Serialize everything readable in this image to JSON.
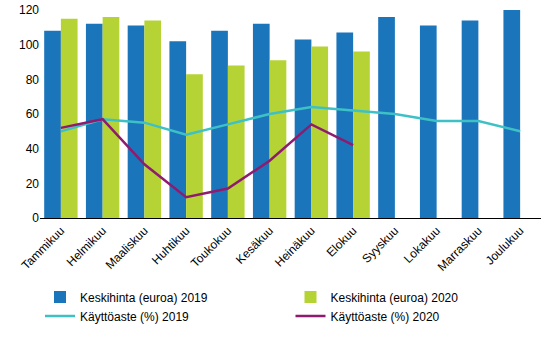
{
  "chart_data": {
    "type": "bar",
    "categories": [
      "Tammikuu",
      "Helmikuu",
      "Maaliskuu",
      "Huhtikuu",
      "Toukokuu",
      "Kesäkuu",
      "Heinäkuu",
      "Elokuu",
      "Syyskuu",
      "Lokakuu",
      "Marraskuu",
      "Joulukuu"
    ],
    "series": [
      {
        "name": "Keskihinta (euroa) 2019",
        "type": "bar",
        "color": "#1b75bb",
        "values": [
          108,
          112,
          111,
          102,
          108,
          112,
          103,
          107,
          116,
          111,
          114,
          120
        ]
      },
      {
        "name": "Keskihinta (euroa) 2020",
        "type": "bar",
        "color": "#b5d334",
        "values": [
          115,
          116,
          114,
          83,
          88,
          91,
          99,
          96,
          null,
          null,
          null,
          null
        ]
      },
      {
        "name": "Käyttöaste (%) 2019",
        "type": "line",
        "color": "#3ec1c6",
        "values": [
          50,
          57,
          55,
          48,
          54,
          60,
          64,
          62,
          60,
          56,
          56,
          50
        ]
      },
      {
        "name": "Käyttöaste (%) 2020",
        "type": "line",
        "color": "#8e1b6f",
        "values": [
          52,
          57,
          31,
          12,
          17,
          33,
          54,
          42,
          null,
          null,
          null,
          null
        ]
      }
    ],
    "ylim": [
      0,
      120
    ],
    "yticks": [
      0,
      20,
      40,
      60,
      80,
      100,
      120
    ],
    "grid": false,
    "legend": "bottom"
  }
}
